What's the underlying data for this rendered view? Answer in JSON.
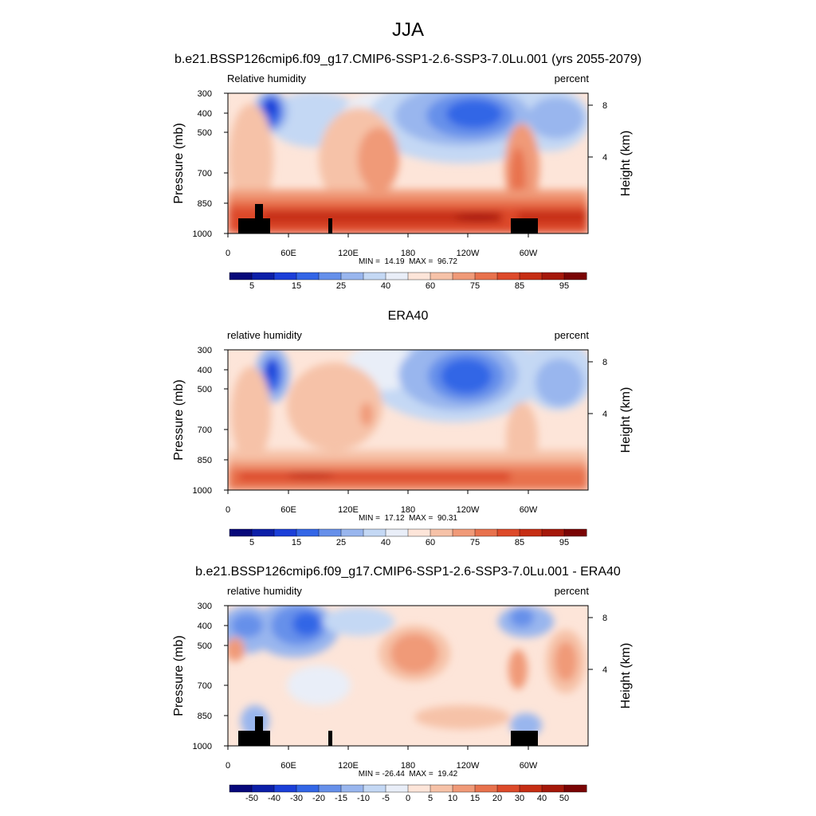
{
  "page": {
    "season": "JJA",
    "case_title": "b.e21.BSSP126cmip6.f09_g17.CMIP6-SSP1-2.6-SSP3-7.0Lu.001 (yrs 2055-2079)"
  },
  "colors": {
    "abs_scale": [
      "#07087a",
      "#0c1fa8",
      "#1b3fd8",
      "#3366e6",
      "#6690ea",
      "#99b6ee",
      "#c4d8f4",
      "#e9eef8",
      "#fde5d9",
      "#f6c2a8",
      "#f09a78",
      "#e8724d",
      "#dd4a2a",
      "#c62e14",
      "#a5180a",
      "#7a0404"
    ],
    "diff_scale": [
      "#07087a",
      "#0c1fa8",
      "#1b3fd8",
      "#3366e6",
      "#6690ea",
      "#99b6ee",
      "#c4d8f4",
      "#e9eef8",
      "#fde5d9",
      "#f6c2a8",
      "#f09a78",
      "#e8724d",
      "#dd4a2a",
      "#c62e14",
      "#a5180a",
      "#7a0404"
    ],
    "land_mask": "#000000"
  },
  "chart_data": [
    {
      "type": "heatmap",
      "panel_title": "",
      "left_label": "Relative humidity",
      "right_label": "percent",
      "ylabel": "Pressure (mb)",
      "y2label": "Height (km)",
      "x_ticks": [
        "0",
        "60E",
        "120E",
        "180",
        "120W",
        "60W"
      ],
      "x_tick_lons": [
        0,
        60,
        120,
        180,
        240,
        300
      ],
      "xlim": [
        0,
        360
      ],
      "y_ticks": [
        "300",
        "400",
        "500",
        "700",
        "850",
        "1000"
      ],
      "y_tick_values": [
        300,
        400,
        500,
        700,
        850,
        1000
      ],
      "ylim": [
        1000,
        300
      ],
      "y_scale": "log",
      "y2_ticks": [
        "4",
        "8"
      ],
      "stats": "MIN =  14.19  MAX =  96.72",
      "colorbar_labels": [
        "5",
        "15",
        "25",
        "40",
        "60",
        "75",
        "85",
        "95"
      ],
      "land_mask": true
    },
    {
      "type": "heatmap",
      "panel_title": "ERA40",
      "left_label": "relative humidity",
      "right_label": "percent",
      "ylabel": "Pressure (mb)",
      "y2label": "Height (km)",
      "x_ticks": [
        "0",
        "60E",
        "120E",
        "180",
        "120W",
        "60W"
      ],
      "x_tick_lons": [
        0,
        60,
        120,
        180,
        240,
        300
      ],
      "xlim": [
        0,
        360
      ],
      "y_ticks": [
        "300",
        "400",
        "500",
        "700",
        "850",
        "1000"
      ],
      "y_tick_values": [
        300,
        400,
        500,
        700,
        850,
        1000
      ],
      "ylim": [
        1000,
        300
      ],
      "y_scale": "log",
      "y2_ticks": [
        "4",
        "8"
      ],
      "stats": "MIN =  17.12  MAX =  90.31",
      "colorbar_labels": [
        "5",
        "15",
        "25",
        "40",
        "60",
        "75",
        "85",
        "95"
      ],
      "land_mask": false
    },
    {
      "type": "heatmap",
      "panel_title": "b.e21.BSSP126cmip6.f09_g17.CMIP6-SSP1-2.6-SSP3-7.0Lu.001 - ERA40",
      "left_label": "relative humidity",
      "right_label": "percent",
      "ylabel": "Pressure (mb)",
      "y2label": "Height (km)",
      "x_ticks": [
        "0",
        "60E",
        "120E",
        "180",
        "120W",
        "60W"
      ],
      "x_tick_lons": [
        0,
        60,
        120,
        180,
        240,
        300
      ],
      "xlim": [
        0,
        360
      ],
      "y_ticks": [
        "300",
        "400",
        "500",
        "700",
        "850",
        "1000"
      ],
      "y_tick_values": [
        300,
        400,
        500,
        700,
        850,
        1000
      ],
      "ylim": [
        1000,
        300
      ],
      "y_scale": "log",
      "y2_ticks": [
        "4",
        "8"
      ],
      "stats": "MIN = -26.44  MAX =  19.42",
      "colorbar_labels": [
        "-50",
        "-40",
        "-30",
        "-20",
        "-15",
        "-10",
        "-5",
        "0",
        "5",
        "10",
        "15",
        "20",
        "30",
        "40",
        "50"
      ],
      "land_mask": true
    }
  ]
}
